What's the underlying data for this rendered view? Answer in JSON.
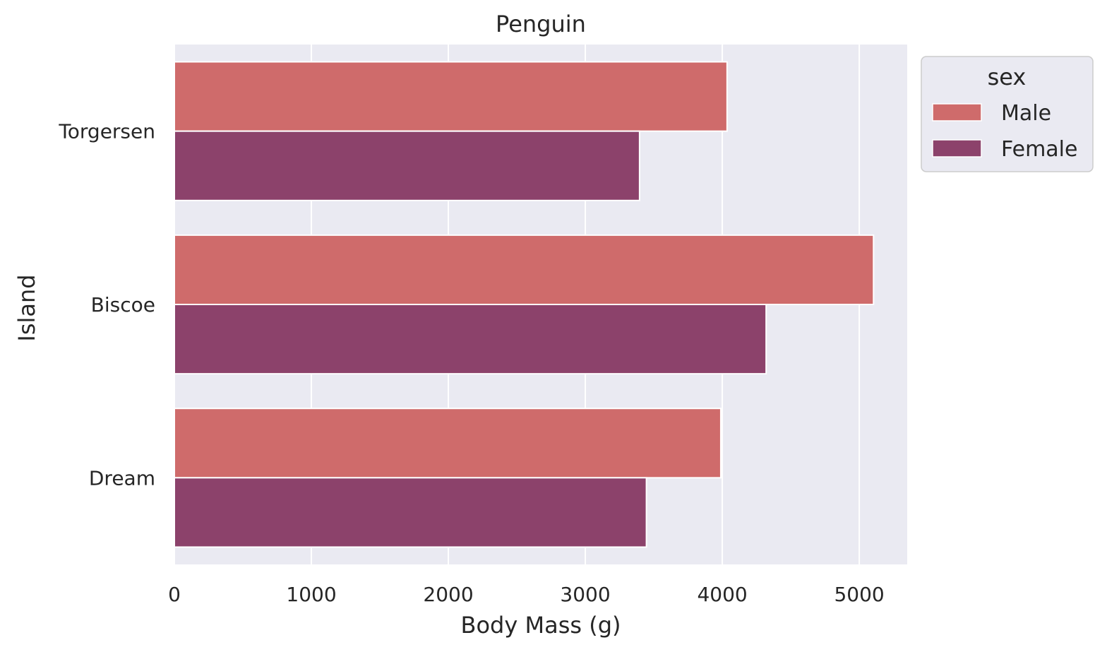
{
  "chart_data": {
    "type": "bar",
    "orientation": "horizontal",
    "title": "Penguin",
    "xlabel": "Body Mass (g)",
    "ylabel": "Island",
    "categories": [
      "Torgersen",
      "Biscoe",
      "Dream"
    ],
    "series": [
      {
        "name": "Male",
        "color": "#cf6b6b",
        "values": [
          4035,
          5104,
          3989
        ]
      },
      {
        "name": "Female",
        "color": "#8c426b",
        "values": [
          3396,
          4320,
          3446
        ]
      }
    ],
    "xlim": [
      0,
      5350
    ],
    "xticks": [
      0,
      1000,
      2000,
      3000,
      4000,
      5000
    ],
    "grid": true,
    "legend": {
      "title": "sex",
      "placement": "outside-top-right"
    },
    "colors": {
      "background": "#eaeaf2",
      "grid": "#ffffff"
    }
  }
}
